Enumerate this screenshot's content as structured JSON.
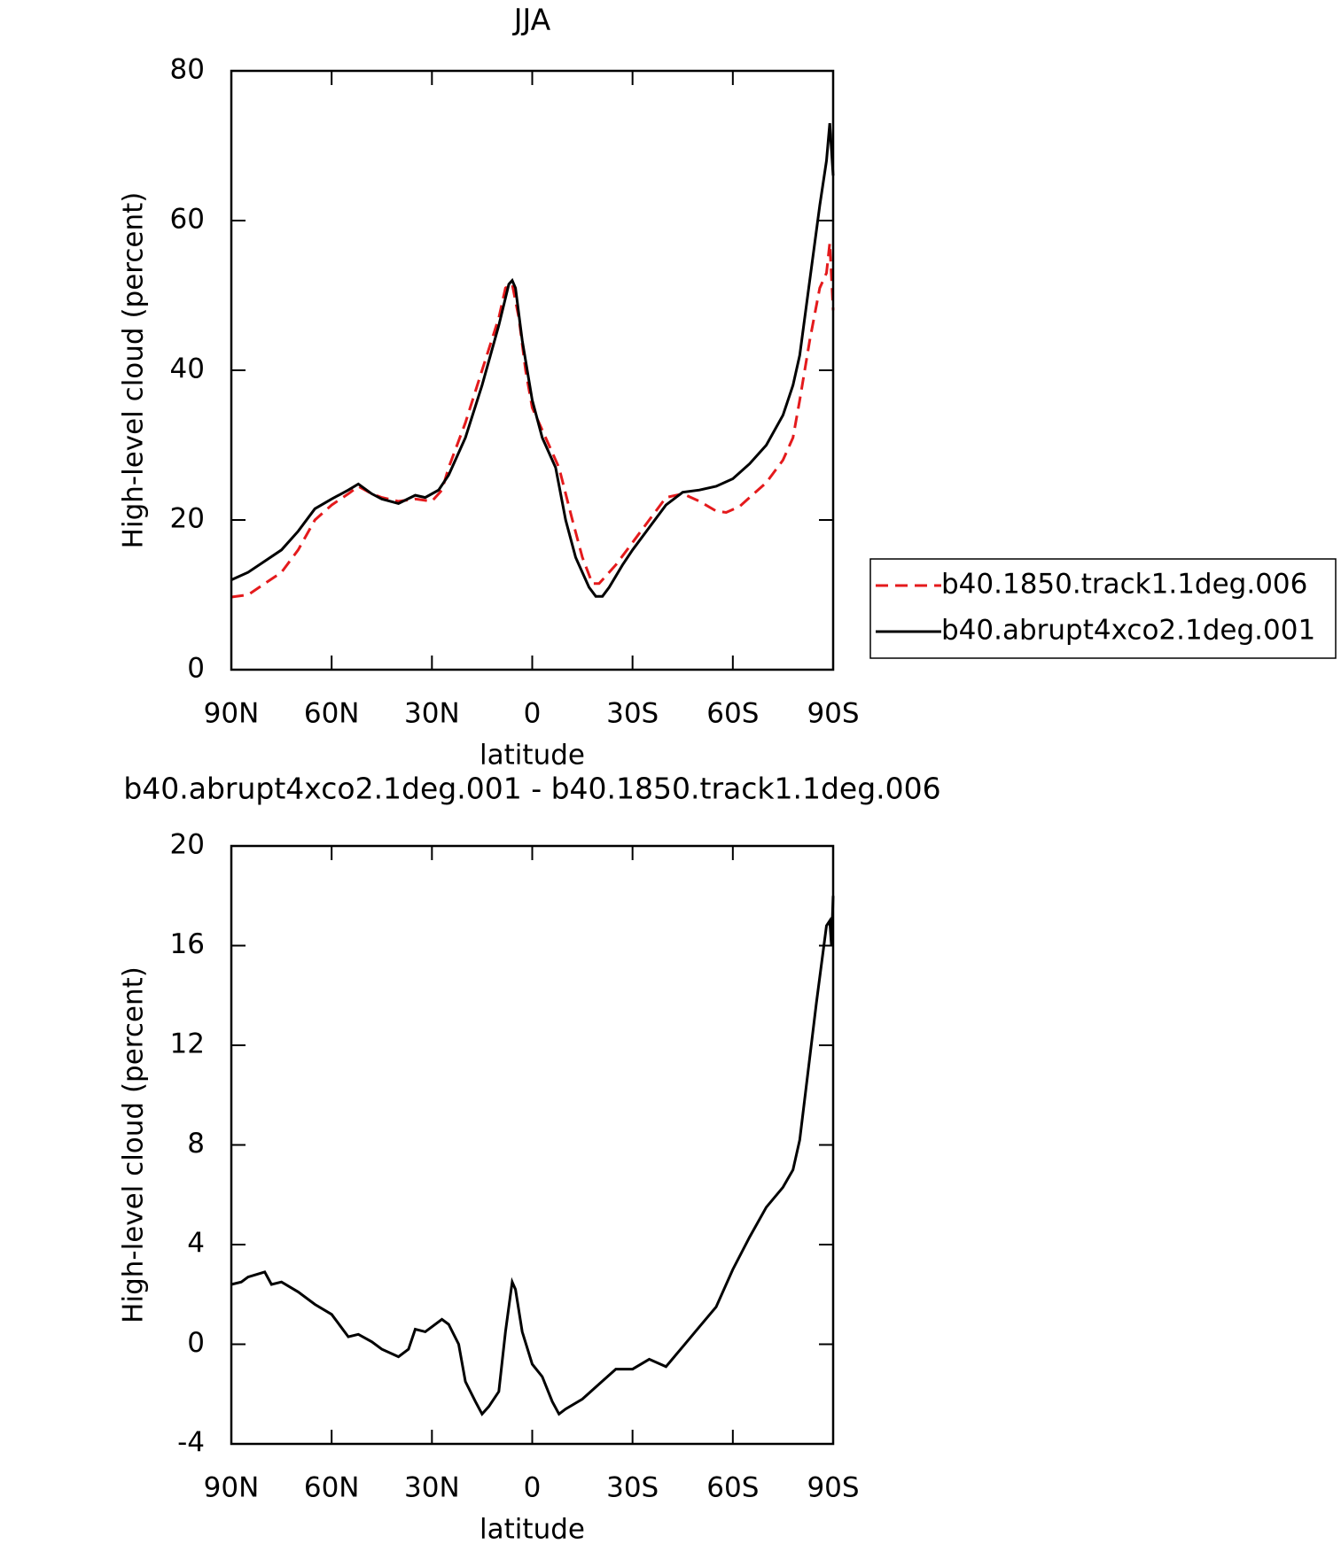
{
  "chart_data": [
    {
      "type": "line",
      "title": "JJA",
      "x_label": "latitude",
      "y_label": "High-level cloud (percent)",
      "xlim": [
        90,
        -90
      ],
      "ylim": [
        0,
        80
      ],
      "xticks": [
        {
          "value": 90,
          "label": "90N"
        },
        {
          "value": 60,
          "label": "60N"
        },
        {
          "value": 30,
          "label": "30N"
        },
        0,
        {
          "value": -30,
          "label": "30S"
        },
        {
          "value": -60,
          "label": "60S"
        },
        {
          "value": -90,
          "label": "90S"
        }
      ],
      "yticks": [
        0,
        20,
        40,
        60,
        80
      ],
      "legend": "outside-right",
      "series": [
        {
          "name": "b40.1850.track1.1deg.006",
          "color": "#e41a1c",
          "linestyle": "dashed",
          "x": [
            90,
            85,
            80,
            75,
            70,
            65,
            60,
            55,
            52,
            48,
            45,
            40,
            35,
            30,
            27,
            25,
            20,
            15,
            10,
            8,
            6,
            4,
            2,
            0,
            -5,
            -8,
            -12,
            -15,
            -18,
            -20,
            -25,
            -30,
            -35,
            -40,
            -45,
            -50,
            -55,
            -58,
            -62,
            -65,
            -70,
            -75,
            -78,
            -80,
            -83,
            -86,
            -88,
            -89,
            -90
          ],
          "values": [
            9.7,
            10,
            11.5,
            13,
            16,
            20,
            22,
            23.5,
            24.5,
            23.5,
            23,
            22.5,
            22.8,
            22.5,
            24,
            27,
            33,
            40,
            47,
            51,
            51.5,
            47,
            40,
            35,
            30,
            27,
            20,
            15,
            11.5,
            11.5,
            14,
            17,
            20,
            23,
            23.5,
            22.5,
            21.2,
            21,
            21.8,
            23,
            25,
            28,
            31,
            36,
            44,
            51,
            53,
            57,
            48
          ]
        },
        {
          "name": "b40.abrupt4xco2.1deg.001",
          "color": "#000000",
          "linestyle": "solid",
          "x": [
            90,
            85,
            80,
            75,
            70,
            65,
            60,
            55,
            52,
            48,
            45,
            40,
            35,
            32,
            28,
            25,
            20,
            15,
            10,
            7,
            6,
            5,
            3,
            0,
            -3,
            -7,
            -10,
            -13,
            -17,
            -19,
            -21,
            -23,
            -27,
            -30,
            -35,
            -40,
            -45,
            -50,
            -55,
            -60,
            -65,
            -70,
            -75,
            -78,
            -80,
            -83,
            -86,
            -88,
            -89,
            -90
          ],
          "values": [
            12,
            13,
            14.5,
            16,
            18.5,
            21.5,
            22.8,
            24,
            24.8,
            23.5,
            22.8,
            22.2,
            23.3,
            23,
            24,
            26,
            31,
            38,
            46,
            51.5,
            52,
            51,
            44,
            36,
            31,
            27,
            20,
            15,
            11,
            9.8,
            9.8,
            11,
            14,
            16,
            19,
            22,
            23.7,
            24,
            24.5,
            25.5,
            27.5,
            30,
            34,
            38,
            42,
            52,
            62,
            68,
            73,
            66
          ]
        }
      ]
    },
    {
      "type": "line",
      "title": "b40.abrupt4xco2.1deg.001 - b40.1850.track1.1deg.006",
      "x_label": "latitude",
      "y_label": "High-level cloud (percent)",
      "xlim": [
        90,
        -90
      ],
      "ylim": [
        -4,
        20
      ],
      "xticks": [
        {
          "value": 90,
          "label": "90N"
        },
        {
          "value": 60,
          "label": "60N"
        },
        {
          "value": 30,
          "label": "30N"
        },
        0,
        {
          "value": -30,
          "label": "30S"
        },
        {
          "value": -60,
          "label": "60S"
        },
        {
          "value": -90,
          "label": "90S"
        }
      ],
      "yticks": [
        -4,
        0,
        4,
        8,
        12,
        16,
        20
      ],
      "series": [
        {
          "color": "#000000",
          "linestyle": "solid",
          "x": [
            90,
            87,
            85,
            80,
            78,
            75,
            70,
            65,
            60,
            55,
            52,
            48,
            45,
            40,
            37,
            35,
            32,
            30,
            27,
            25,
            22,
            20,
            17,
            15,
            13,
            10,
            8,
            6,
            5,
            3,
            0,
            -3,
            -6,
            -8,
            -10,
            -15,
            -20,
            -25,
            -30,
            -35,
            -40,
            -45,
            -50,
            -55,
            -60,
            -65,
            -70,
            -75,
            -78,
            -80,
            -83,
            -85,
            -88,
            -89,
            -89.5,
            -90
          ],
          "values": [
            2.4,
            2.5,
            2.7,
            2.9,
            2.4,
            2.5,
            2.1,
            1.6,
            1.2,
            0.3,
            0.4,
            0.1,
            -0.2,
            -0.5,
            -0.2,
            0.6,
            0.5,
            0.7,
            1.0,
            0.8,
            0,
            -1.5,
            -2.3,
            -2.8,
            -2.5,
            -1.9,
            0.5,
            2.5,
            2.2,
            0.5,
            -0.8,
            -1.3,
            -2.3,
            -2.8,
            -2.6,
            -2.2,
            -1.6,
            -1.0,
            -1.0,
            -0.6,
            -0.9,
            -0.1,
            0.7,
            1.5,
            3,
            4.3,
            5.5,
            6.3,
            7,
            8.2,
            11.5,
            13.7,
            16.8,
            17.0,
            16,
            18
          ]
        }
      ]
    }
  ]
}
